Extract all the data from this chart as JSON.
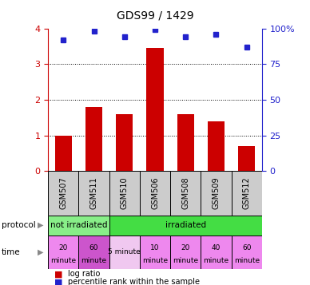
{
  "title": "GDS99 / 1429",
  "samples": [
    "GSM507",
    "GSM511",
    "GSM510",
    "GSM506",
    "GSM508",
    "GSM509",
    "GSM512"
  ],
  "log_ratio": [
    1.0,
    1.8,
    1.6,
    3.45,
    1.6,
    1.4,
    0.7
  ],
  "percentile_rank": [
    92,
    98,
    94,
    99,
    94,
    96,
    87
  ],
  "bar_color": "#cc0000",
  "dot_color": "#2222cc",
  "ylim_left": [
    0,
    4
  ],
  "yticks_left": [
    0,
    1,
    2,
    3,
    4
  ],
  "yticks_right": [
    0,
    25,
    50,
    75,
    100
  ],
  "yticklabels_right": [
    "0",
    "25",
    "50",
    "75",
    "100%"
  ],
  "tick_color_left": "#cc0000",
  "tick_color_right": "#2222cc",
  "protocol_not_irr_color": "#88ee88",
  "protocol_irr_color": "#44dd44",
  "time_colors": [
    "#ee88ee",
    "#cc55cc",
    "#f0c8f0",
    "#ee88ee",
    "#ee88ee",
    "#ee88ee",
    "#ee88ee"
  ],
  "time_labels_line1": [
    "20",
    "60",
    "5 minute",
    "10",
    "20",
    "40",
    "60"
  ],
  "time_labels_line2": [
    "minute",
    "minute",
    "",
    "minute",
    "minute",
    "minute",
    "minute"
  ],
  "sample_box_color": "#cccccc",
  "bg_color": "#ffffff"
}
